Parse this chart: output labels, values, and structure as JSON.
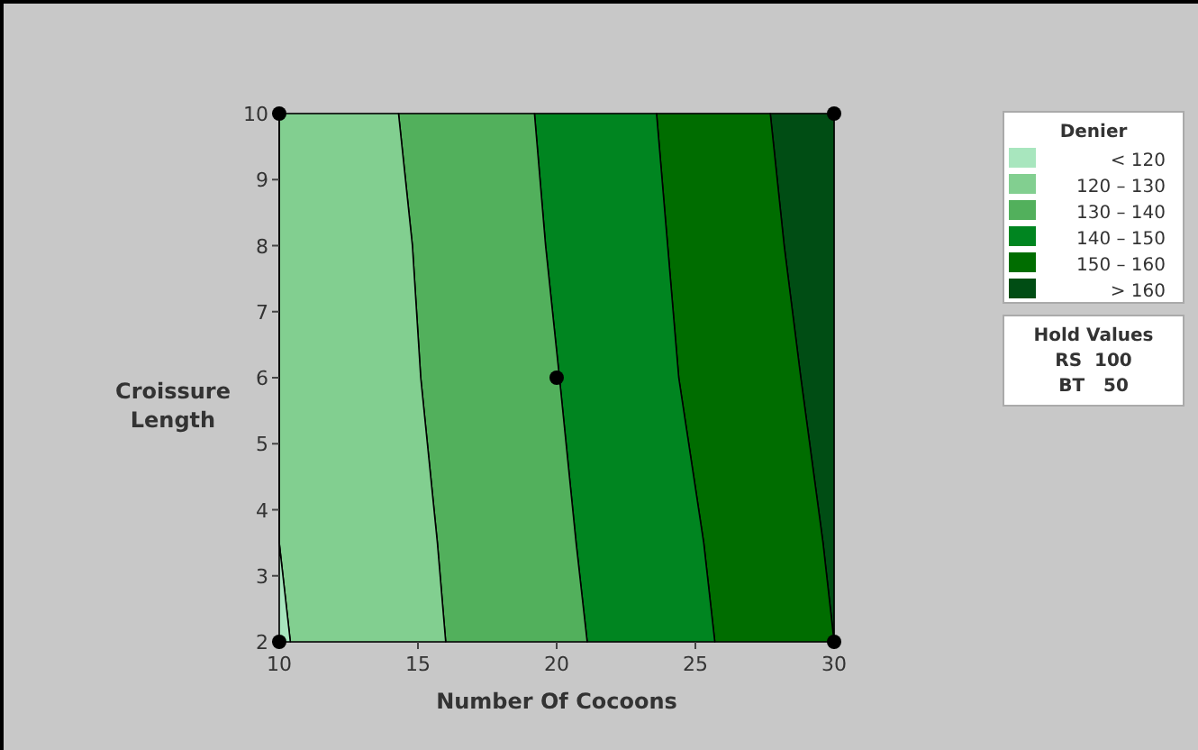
{
  "chart_data": {
    "type": "area",
    "orientation": "horizontal",
    "xlabel": "Number Of Cocoons",
    "ylabel": "Croissure Length",
    "legend_title": "Denier",
    "legend": "right",
    "x": [
      2,
      3.5,
      6,
      8,
      10
    ],
    "xlim": [
      10,
      30
    ],
    "xticks": [
      10,
      15,
      20,
      25,
      30
    ],
    "ylim": [
      2,
      10
    ],
    "yticks": [
      2,
      3,
      4,
      5,
      6,
      7,
      8,
      9,
      10
    ],
    "series": [
      {
        "name": "< 120",
        "color": "#a8e6be",
        "values": [
          10.4,
          10,
          10,
          10,
          10
        ]
      },
      {
        "name": "120 – 130",
        "color": "#82cf90",
        "values": [
          16.0,
          15.7,
          15.1,
          14.8,
          14.3
        ]
      },
      {
        "name": "130 – 140",
        "color": "#52b05c",
        "values": [
          21.1,
          20.7,
          20.1,
          19.6,
          19.2
        ]
      },
      {
        "name": "140 – 150",
        "color": "#008520",
        "values": [
          25.7,
          25.3,
          24.4,
          24.0,
          23.6
        ]
      },
      {
        "name": "150 – 160",
        "color": "#006d00",
        "values": [
          30.0,
          29.6,
          28.8,
          28.2,
          27.7
        ]
      },
      {
        "name": "> 160",
        "color": "#004d14",
        "values": [
          30,
          30,
          30,
          30,
          30
        ]
      },
      {
        "type": "scatter",
        "marker": "circle",
        "color": "#000000",
        "x": [
          2,
          10,
          2,
          10,
          6
        ],
        "values": [
          10,
          10,
          30,
          30,
          20
        ]
      }
    ],
    "annotations": [
      "Hold Values",
      "RS  100",
      "BT   50"
    ]
  }
}
